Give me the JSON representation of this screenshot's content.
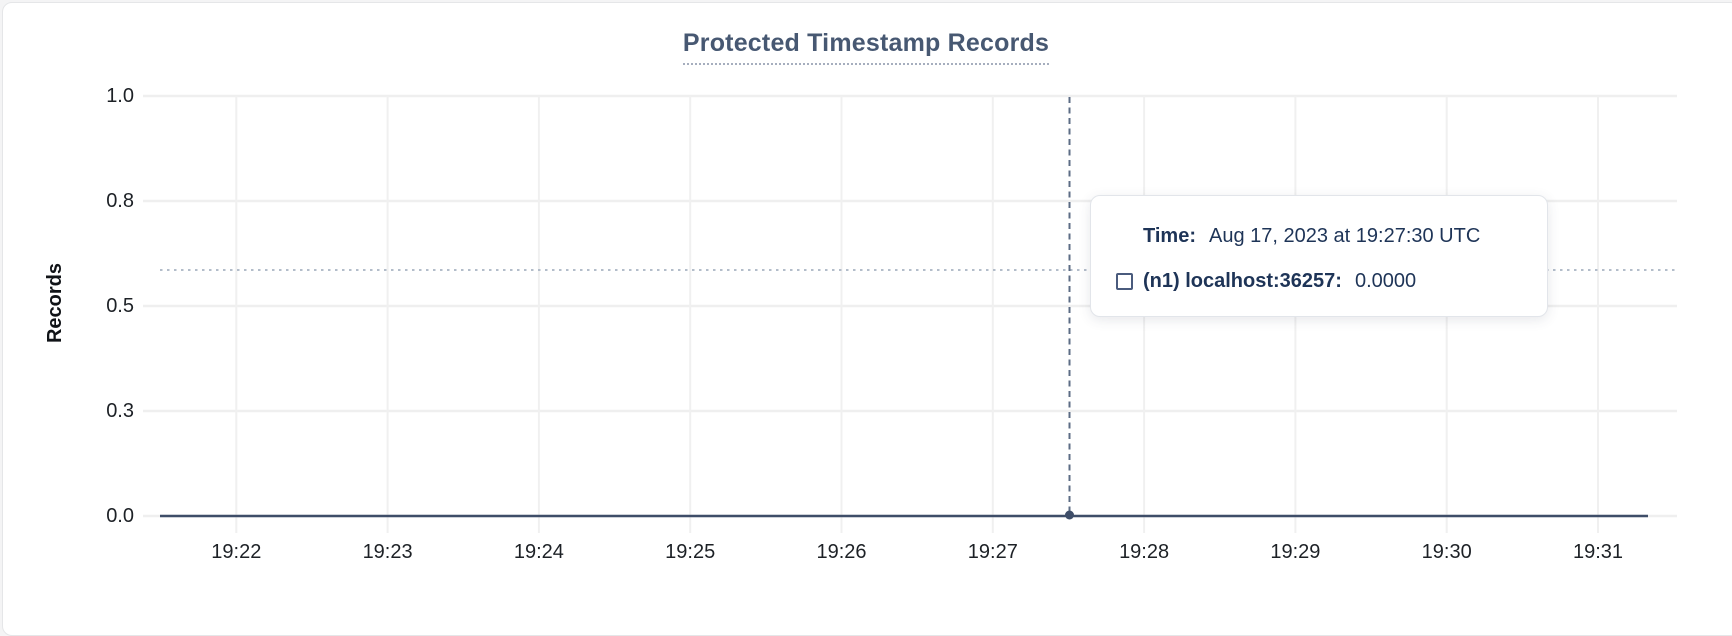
{
  "chart": {
    "title": "Protected Timestamp Records",
    "y_axis": {
      "label": "Records",
      "ticks": [
        "1.0",
        "0.8",
        "0.5",
        "0.3",
        "0.0"
      ]
    },
    "x_axis": {
      "ticks": [
        "19:22",
        "19:23",
        "19:24",
        "19:25",
        "19:26",
        "19:27",
        "19:28",
        "19:29",
        "19:30",
        "19:31"
      ]
    }
  },
  "tooltip": {
    "time_label": "Time:",
    "time_value": "Aug 17, 2023 at 19:27:30 UTC",
    "series": [
      {
        "name": "(n1) localhost:36257:",
        "value": "0.0000"
      }
    ]
  },
  "colors": {
    "title_text": "#475872",
    "series_line": "#3e4d68",
    "grid_line": "#efefef",
    "crosshair_vertical": "#5c6c85",
    "crosshair_horizontal": "#b3bdca",
    "tooltip_text": "#1e3457"
  },
  "chart_data": {
    "type": "line",
    "title": "Protected Timestamp Records",
    "xlabel": "",
    "ylabel": "Records",
    "ylim": [
      0.0,
      1.0
    ],
    "grid": true,
    "legend_position": "tooltip",
    "y_ticks": [
      0.0,
      0.3,
      0.5,
      0.8,
      1.0
    ],
    "x_ticks": [
      "19:22",
      "19:23",
      "19:24",
      "19:25",
      "19:26",
      "19:27",
      "19:28",
      "19:29",
      "19:30",
      "19:31"
    ],
    "series": [
      {
        "name": "(n1) localhost:36257",
        "color": "#3e4d68",
        "x": [
          "19:21:30",
          "19:22",
          "19:23",
          "19:24",
          "19:25",
          "19:26",
          "19:27",
          "19:27:30",
          "19:28",
          "19:29",
          "19:30",
          "19:31",
          "19:31:20"
        ],
        "values": [
          0,
          0,
          0,
          0,
          0,
          0,
          0,
          0,
          0,
          0,
          0,
          0,
          0
        ]
      }
    ],
    "crosshair": {
      "time": "19:27:30",
      "value": 0.0
    }
  }
}
